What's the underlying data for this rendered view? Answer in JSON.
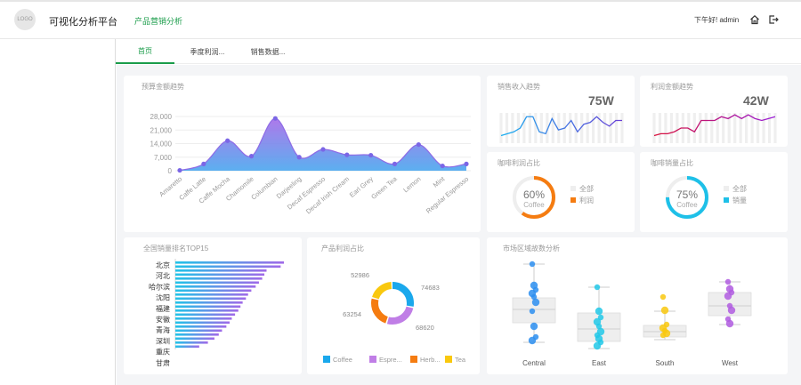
{
  "header": {
    "logo_text": "LOGO",
    "title": "可视化分析平台",
    "subtitle": "产品营销分析",
    "greeting": "下午好! admin"
  },
  "tabs": [
    {
      "label": "首页",
      "active": true
    },
    {
      "label": "季度利润...",
      "active": false
    },
    {
      "label": "销售数据...",
      "active": false
    }
  ],
  "colors": {
    "accent": "#1a9c4a",
    "coffee": "#1aa8ec",
    "espresso": "#c07ee6",
    "herbal": "#f57c11",
    "tea": "#f9c80e"
  },
  "budget": {
    "title": "预算金额趋势",
    "chart_data": {
      "type": "area",
      "categories": [
        "Amaretto",
        "Caffe Latte",
        "Caffe Mocha",
        "Chamomile",
        "Columbian",
        "Darjeeling",
        "Decaf Espresso",
        "Decaf Irish Cream",
        "Earl Grey",
        "Green Tea",
        "Lemon",
        "Mint",
        "Regular Espresso"
      ],
      "values": [
        200,
        3500,
        15500,
        7500,
        27000,
        7000,
        11000,
        8200,
        8000,
        3500,
        13500,
        2500,
        3500
      ],
      "yticks": [
        "28,000",
        "21,000",
        "14,000",
        "7,000",
        "0"
      ],
      "ylim": [
        0,
        28000
      ]
    }
  },
  "sales_trend": {
    "title": "销售收入趋势",
    "value": "75W",
    "chart_data": {
      "type": "line",
      "values": [
        4,
        5,
        6,
        8,
        14,
        14,
        6,
        5,
        13,
        7,
        8,
        12,
        6,
        10,
        11,
        14,
        11,
        9,
        12,
        12
      ]
    }
  },
  "profit_trend": {
    "title": "利润金额趋势",
    "value": "42W",
    "chart_data": {
      "type": "line",
      "values": [
        4,
        5,
        5,
        6,
        8,
        8,
        6,
        12,
        12,
        12,
        14,
        13,
        15,
        13,
        15,
        13,
        12,
        13,
        14
      ]
    }
  },
  "coffee_profit": {
    "title": "咖啡利润占比",
    "percent": "60%",
    "fraction": 0.6,
    "label": "Coffee",
    "legend": [
      "全部",
      "利润"
    ],
    "color": "#f57c11"
  },
  "coffee_sales": {
    "title": "咖啡销量占比",
    "percent": "75%",
    "fraction": 0.75,
    "label": "Coffee",
    "legend": [
      "全部",
      "销量"
    ],
    "color": "#1ec0e8"
  },
  "top15": {
    "title": "全国销量排名TOP15",
    "labels": [
      "北京",
      "河北",
      "哈尔滨",
      "沈阳",
      "福建",
      "安徽",
      "青海",
      "深圳",
      "重庆",
      "甘肃"
    ],
    "chart_data": {
      "type": "bar",
      "values": [
        100,
        97,
        84,
        82,
        80,
        77,
        74,
        70,
        67,
        65,
        62,
        60,
        58,
        55,
        52,
        50,
        47,
        43,
        40,
        36,
        30,
        22
      ]
    }
  },
  "product_profit": {
    "title": "产品利润占比",
    "chart_data": {
      "type": "pie",
      "labels": [
        "Coffee",
        "Espresso",
        "Herbal Tea",
        "Tea"
      ],
      "legend_labels": [
        "Coffee",
        "Espre...",
        "Herb...",
        "Tea"
      ],
      "values": [
        74683,
        68620,
        63254,
        52986
      ]
    }
  },
  "market": {
    "title": "市场区域故数分析",
    "chart_data": {
      "type": "box",
      "categories": [
        "Central",
        "East",
        "South",
        "West"
      ]
    }
  }
}
